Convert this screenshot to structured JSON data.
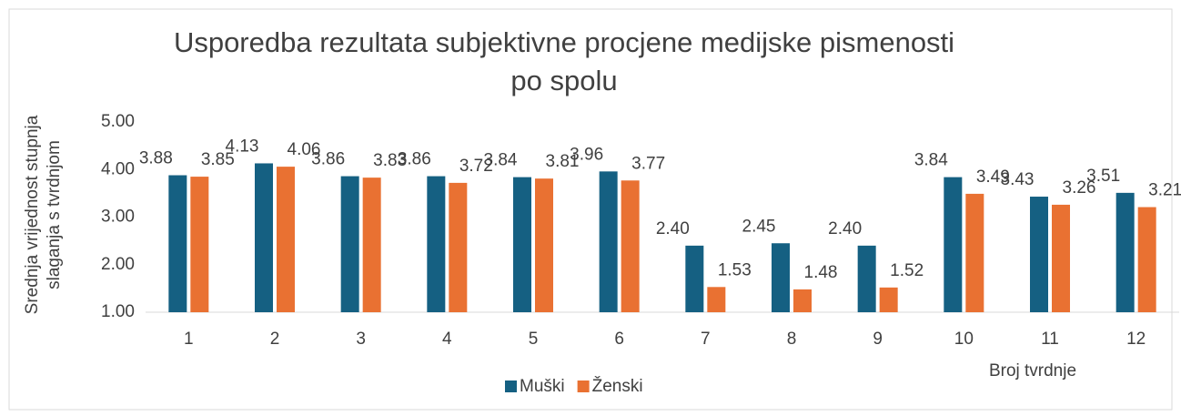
{
  "chart_data": {
    "type": "bar",
    "title": "Usporedba rezultata subjektivne procjene medijske pismenosti po spolu",
    "y_label": "Srednja vrijednost stupnja slaganja s tvrdnjom",
    "x_label": "Broj tvrdnje",
    "categories": [
      "1",
      "2",
      "3",
      "4",
      "5",
      "6",
      "7",
      "8",
      "9",
      "10",
      "11",
      "12"
    ],
    "series": [
      {
        "name": "Muški",
        "color": "#156082",
        "values": [
          3.88,
          4.13,
          3.86,
          3.86,
          3.84,
          3.96,
          2.4,
          2.45,
          2.4,
          3.84,
          3.43,
          3.51
        ],
        "value_labels": [
          "3.88",
          "4.13",
          "3.86",
          "3.86",
          "3.84",
          "3.96",
          "2.40",
          "2.45",
          "2.40",
          "3.84",
          "3.43",
          "3.51"
        ]
      },
      {
        "name": "Ženski",
        "color": "#e97132",
        "values": [
          3.85,
          4.06,
          3.83,
          3.72,
          3.81,
          3.77,
          1.53,
          1.48,
          1.52,
          3.49,
          3.26,
          3.21
        ],
        "value_labels": [
          "3.85",
          "4.06",
          "3.83",
          "3.72",
          "3.81",
          "3.77",
          "1.53",
          "1.48",
          "1.52",
          "3.49",
          "3.26",
          "3.21"
        ]
      }
    ],
    "ylim": [
      1,
      5
    ],
    "yticks": [
      {
        "value": 1,
        "label": "1.00"
      },
      {
        "value": 2,
        "label": "2.00"
      },
      {
        "value": 3,
        "label": "3.00"
      },
      {
        "value": 4,
        "label": "4.00"
      },
      {
        "value": 5,
        "label": "5.00"
      }
    ],
    "grid": false,
    "legend": "bottom"
  }
}
